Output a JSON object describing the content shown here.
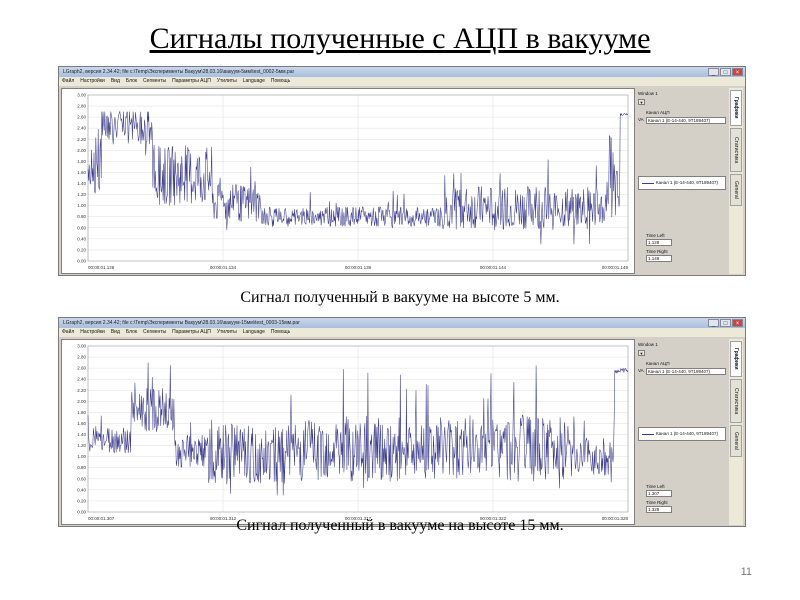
{
  "slide": {
    "title": "Сигналы полученные с АЦП в вакууме",
    "page_number": "11"
  },
  "app": {
    "menu": [
      "Файл",
      "Настройки",
      "Вид",
      "Блок",
      "Сегменты",
      "Параметры АЦП",
      "Утилиты",
      "Language",
      "Помощь"
    ],
    "side_panel": {
      "window_label": "Window 1",
      "channel_label": "Канал АЦП",
      "channel_value": "Канал 1 (Е-14-440, 9Т189407)",
      "va_label": "VA",
      "legend_text": "Канал 1 (Е-14-440, 9Т189407)",
      "time_left_label": "Time Left",
      "time_right_label": "Time Right"
    },
    "tabs": [
      "Графики",
      "Статистика",
      "General"
    ]
  },
  "screens": [
    {
      "title_text": "LGraph2, версия 2.34.42; file c:\\Temp\\Эксперименты Вакуум\\28.03.16\\вакуум-5мм\\test_0002-5мм.par",
      "caption": "Сигнал полученный в вакууме на высоте 5 мм.",
      "time_left": "1.128",
      "time_right": "1.149",
      "chart_data": {
        "type": "line",
        "x_ticks": [
          "00:00:01.128",
          "00:00:01.134",
          "00:00:01.139",
          "00:00:01.144",
          "00:00:01.149"
        ],
        "y_ticks": [
          "3.00",
          "2.80",
          "2.60",
          "2.40",
          "2.20",
          "2.00",
          "1.80",
          "1.60",
          "1.40",
          "1.20",
          "1.00",
          "0.80",
          "0.60",
          "0.40",
          "0.20",
          "0.00"
        ],
        "ylim": [
          0,
          3
        ],
        "grid": true,
        "line_color": "#3a3a8c",
        "segments": [
          {
            "x": [
              0.0,
              0.025
            ],
            "level": 1.75,
            "amp": 0.55
          },
          {
            "x": [
              0.025,
              0.12
            ],
            "level": 2.45,
            "amp": 0.35
          },
          {
            "x": [
              0.12,
              0.23
            ],
            "level": 1.55,
            "amp": 0.55
          },
          {
            "x": [
              0.23,
              0.32
            ],
            "level": 1.05,
            "amp": 0.35
          },
          {
            "x": [
              0.32,
              0.65
            ],
            "level": 0.8,
            "amp": 0.18
          },
          {
            "x": [
              0.65,
              0.96
            ],
            "level": 0.95,
            "amp": 0.4
          },
          {
            "x": [
              0.96,
              0.985
            ],
            "level": 1.5,
            "amp": 0.8
          },
          {
            "x": [
              0.985,
              1.0
            ],
            "level": 2.65,
            "amp": 0.02
          }
        ]
      }
    },
    {
      "title_text": "LGraph2, версия 2.34.42; file c:\\Temp\\Эксперименты Вакуум\\28.03.16\\вакуум-15мм\\test_0003-15мм.par",
      "caption": "Сигнал полученный в вакууме на высоте 15 мм.",
      "time_left": "1.307",
      "time_right": "1.328",
      "chart_data": {
        "type": "line",
        "x_ticks": [
          "00:00:01.307",
          "00:00:01.312",
          "00:00:01.317",
          "00:00:01.322",
          "00:00:01.328"
        ],
        "y_ticks": [
          "3.00",
          "2.80",
          "2.60",
          "2.40",
          "2.20",
          "2.00",
          "1.80",
          "1.60",
          "1.40",
          "1.20",
          "1.00",
          "0.80",
          "0.60",
          "0.40",
          "0.20",
          "0.00"
        ],
        "ylim": [
          0,
          3
        ],
        "grid": true,
        "line_color": "#3a3a8c",
        "segments": [
          {
            "x": [
              0.0,
              0.08
            ],
            "level": 1.3,
            "amp": 0.25
          },
          {
            "x": [
              0.08,
              0.16
            ],
            "level": 1.85,
            "amp": 0.4
          },
          {
            "x": [
              0.16,
              0.22
            ],
            "level": 1.1,
            "amp": 0.3
          },
          {
            "x": [
              0.22,
              0.4
            ],
            "level": 1.05,
            "amp": 0.55
          },
          {
            "x": [
              0.4,
              0.9
            ],
            "level": 1.15,
            "amp": 0.6
          },
          {
            "x": [
              0.9,
              0.975
            ],
            "level": 1.0,
            "amp": 0.35
          },
          {
            "x": [
              0.975,
              1.0
            ],
            "level": 2.55,
            "amp": 0.05
          }
        ]
      }
    }
  ]
}
